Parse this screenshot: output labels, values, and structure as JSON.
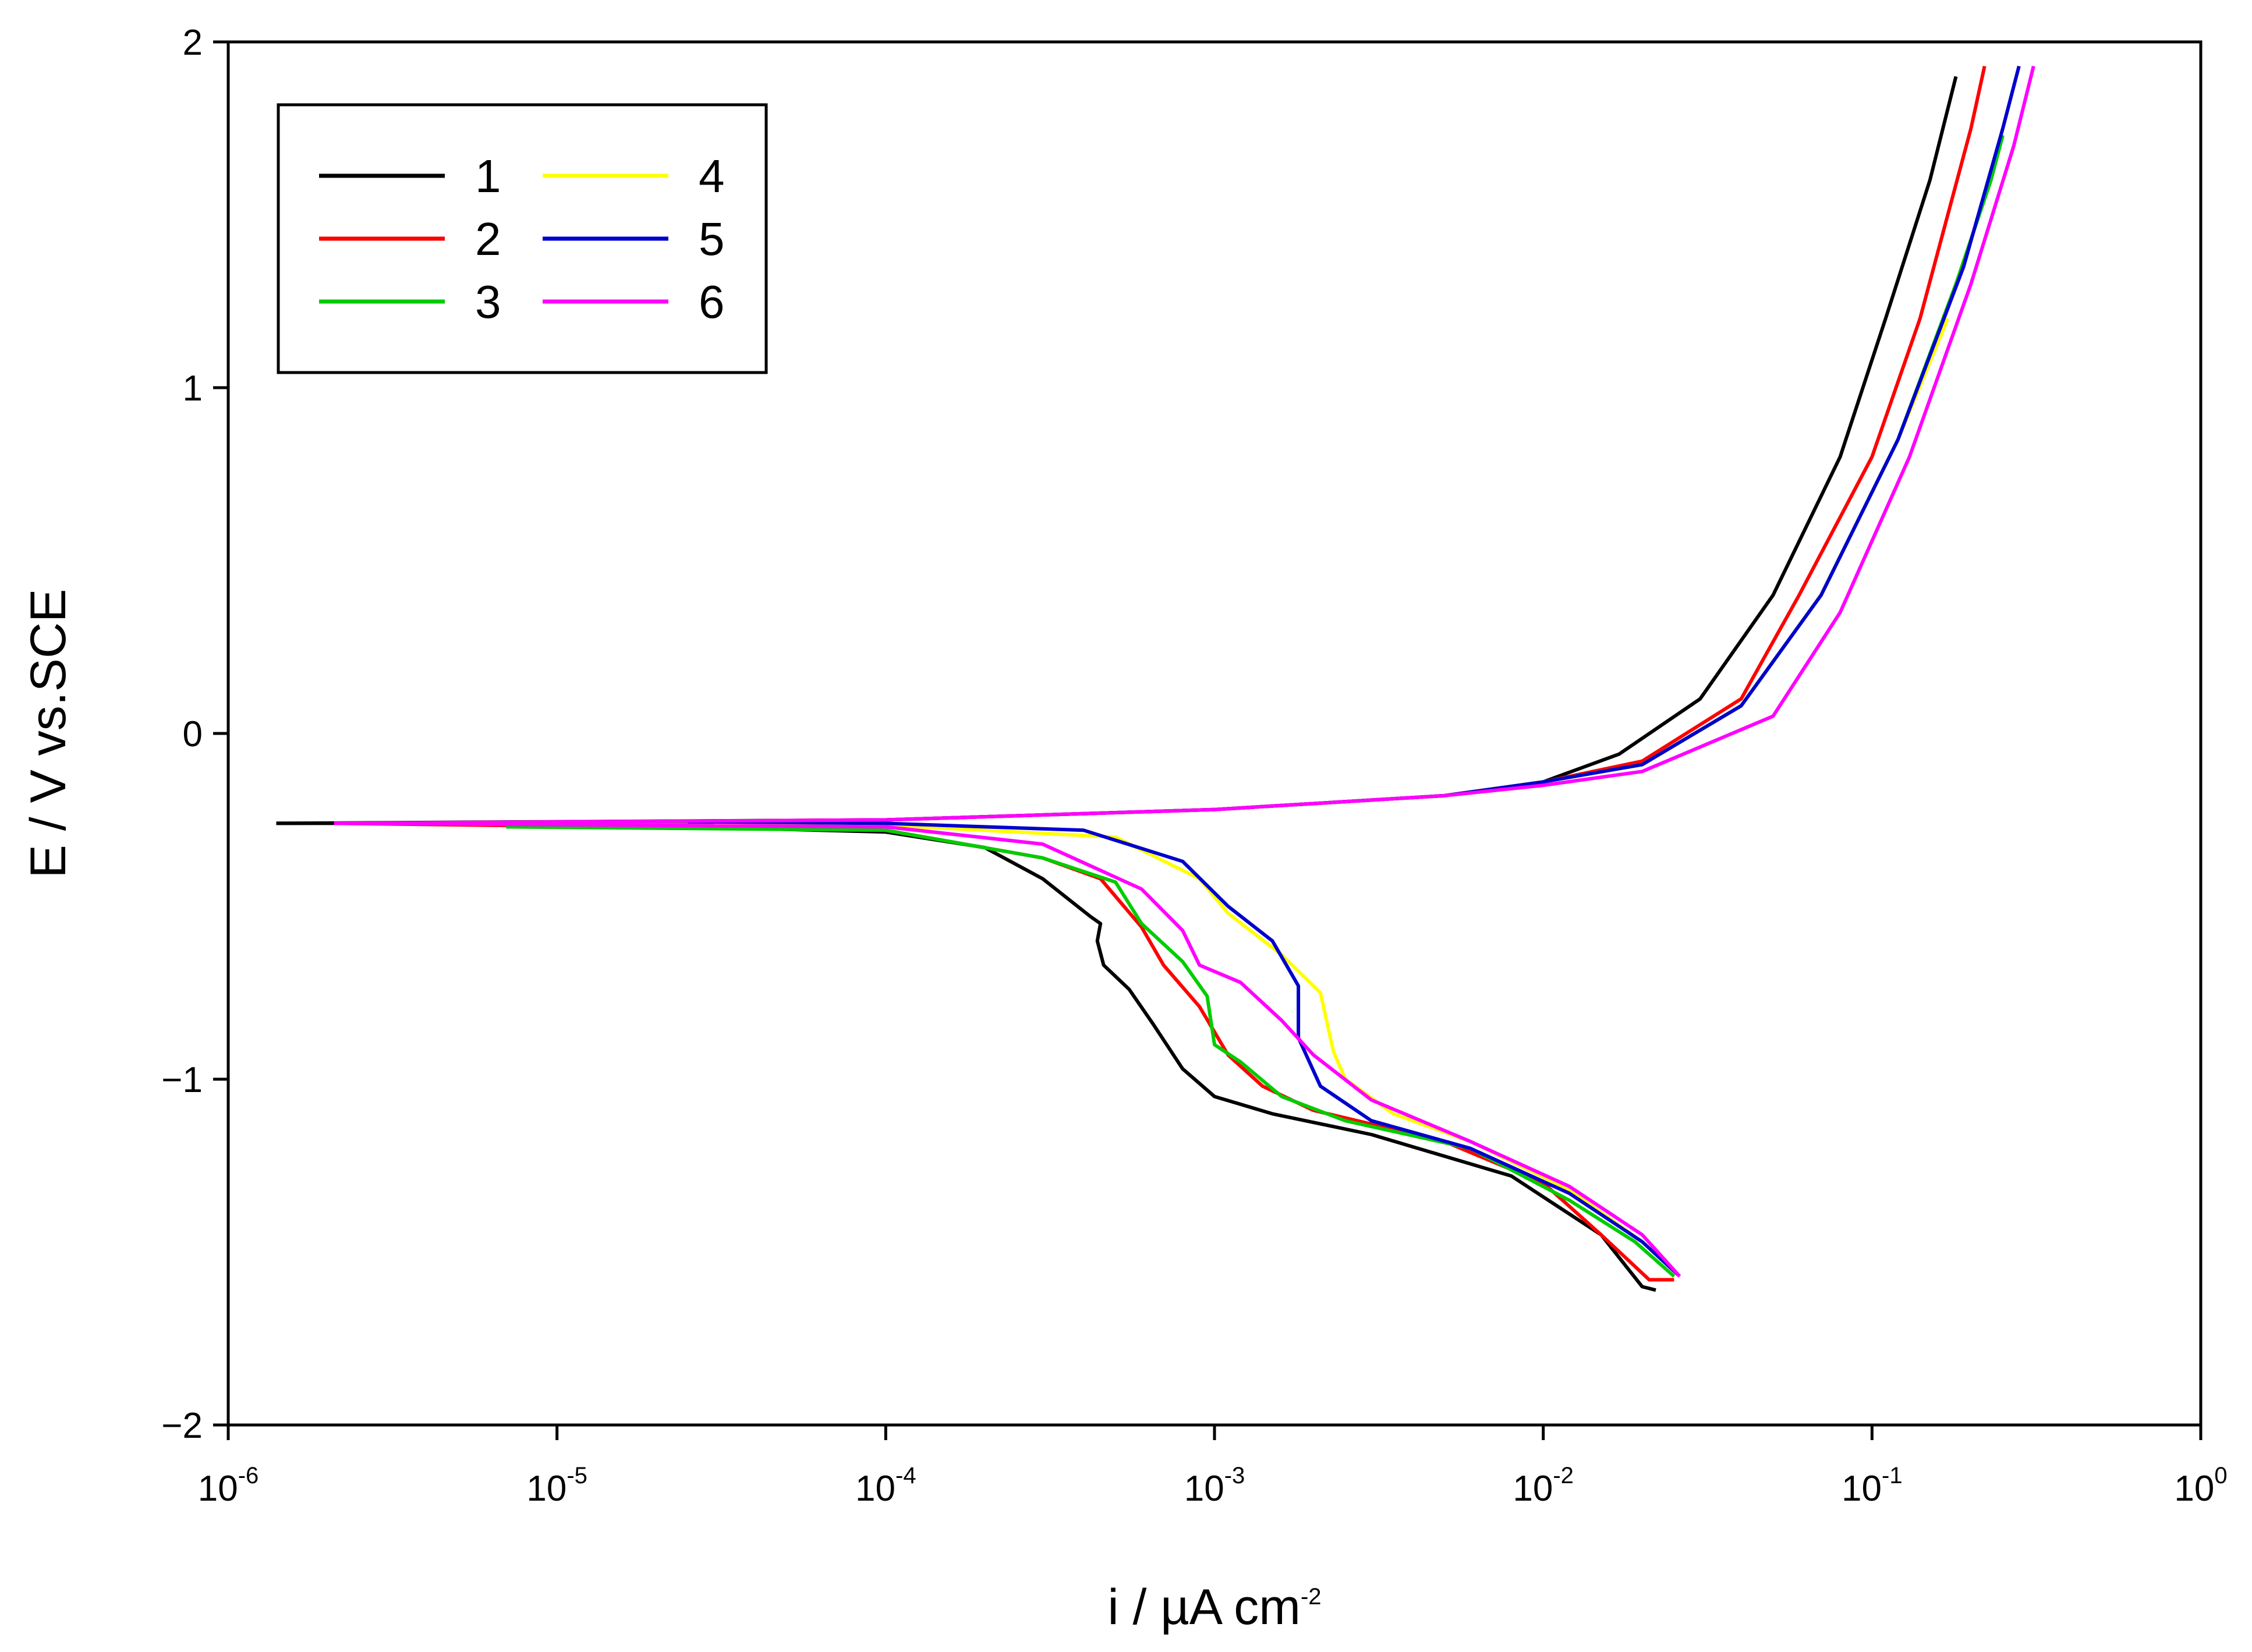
{
  "chart_data": {
    "type": "line",
    "title": "",
    "xlabel": "i / µA cm",
    "xlabel_sup": "-2",
    "ylabel": "E / V vs.SCE",
    "x_scale": "log",
    "xlim": [
      1e-06,
      1
    ],
    "ylim": [
      -2,
      2
    ],
    "x_ticks": [
      {
        "value": 1e-06,
        "base": "10",
        "exp": "-6"
      },
      {
        "value": 1e-05,
        "base": "10",
        "exp": "-5"
      },
      {
        "value": 0.0001,
        "base": "10",
        "exp": "-4"
      },
      {
        "value": 0.001,
        "base": "10",
        "exp": "-3"
      },
      {
        "value": 0.01,
        "base": "10",
        "exp": "-2"
      },
      {
        "value": 0.1,
        "base": "10",
        "exp": "-1"
      },
      {
        "value": 1,
        "base": "10",
        "exp": "0"
      }
    ],
    "y_ticks": [
      {
        "value": 2,
        "label": "2"
      },
      {
        "value": 1,
        "label": "1"
      },
      {
        "value": 0,
        "label": "0"
      },
      {
        "value": -1,
        "label": "−1"
      },
      {
        "value": -2,
        "label": "−2"
      }
    ],
    "grid": false,
    "legend_position": "top-left",
    "series": [
      {
        "name": "1",
        "color": "#000000",
        "cathodic": [
          [
            1.4e-06,
            -0.26
          ],
          [
            1e-05,
            -0.26
          ],
          [
            0.0001,
            -0.285
          ],
          [
            0.0002,
            -0.33
          ],
          [
            0.0003,
            -0.42
          ],
          [
            0.00042,
            -0.53
          ],
          [
            0.00045,
            -0.55
          ],
          [
            0.00044,
            -0.6
          ],
          [
            0.00046,
            -0.67
          ],
          [
            0.00055,
            -0.74
          ],
          [
            0.00065,
            -0.84
          ],
          [
            0.0008,
            -0.97
          ],
          [
            0.001,
            -1.05
          ],
          [
            0.0015,
            -1.1
          ],
          [
            0.003,
            -1.16
          ],
          [
            0.008,
            -1.28
          ],
          [
            0.015,
            -1.45
          ],
          [
            0.02,
            -1.6
          ],
          [
            0.022,
            -1.61
          ]
        ],
        "anodic": [
          [
            1.4e-06,
            -0.26
          ],
          [
            0.0001,
            -0.25
          ],
          [
            0.001,
            -0.22
          ],
          [
            0.005,
            -0.18
          ],
          [
            0.01,
            -0.14
          ],
          [
            0.017,
            -0.06
          ],
          [
            0.03,
            0.1
          ],
          [
            0.05,
            0.4
          ],
          [
            0.08,
            0.8
          ],
          [
            0.11,
            1.2
          ],
          [
            0.15,
            1.6
          ],
          [
            0.18,
            1.9
          ]
        ]
      },
      {
        "name": "2",
        "color": "#ff0000",
        "cathodic": [
          [
            2.1e-06,
            -0.26
          ],
          [
            0.0001,
            -0.28
          ],
          [
            0.0003,
            -0.36
          ],
          [
            0.00045,
            -0.42
          ],
          [
            0.0006,
            -0.56
          ],
          [
            0.0007,
            -0.67
          ],
          [
            0.0009,
            -0.79
          ],
          [
            0.0011,
            -0.93
          ],
          [
            0.0014,
            -1.02
          ],
          [
            0.002,
            -1.09
          ],
          [
            0.005,
            -1.18
          ],
          [
            0.01,
            -1.3
          ],
          [
            0.015,
            -1.45
          ],
          [
            0.021,
            -1.58
          ],
          [
            0.025,
            -1.58
          ]
        ],
        "anodic": [
          [
            2.1e-06,
            -0.26
          ],
          [
            0.0001,
            -0.25
          ],
          [
            0.001,
            -0.22
          ],
          [
            0.005,
            -0.18
          ],
          [
            0.01,
            -0.14
          ],
          [
            0.02,
            -0.08
          ],
          [
            0.04,
            0.1
          ],
          [
            0.06,
            0.4
          ],
          [
            0.1,
            0.8
          ],
          [
            0.14,
            1.2
          ],
          [
            0.17,
            1.5
          ],
          [
            0.2,
            1.75
          ],
          [
            0.22,
            1.93
          ]
        ]
      },
      {
        "name": "3",
        "color": "#00cc00",
        "cathodic": [
          [
            7e-06,
            -0.27
          ],
          [
            0.0001,
            -0.28
          ],
          [
            0.0003,
            -0.36
          ],
          [
            0.0005,
            -0.43
          ],
          [
            0.0006,
            -0.55
          ],
          [
            0.0008,
            -0.66
          ],
          [
            0.00095,
            -0.76
          ],
          [
            0.001,
            -0.9
          ],
          [
            0.0012,
            -0.95
          ],
          [
            0.0016,
            -1.05
          ],
          [
            0.0025,
            -1.12
          ],
          [
            0.006,
            -1.2
          ],
          [
            0.012,
            -1.35
          ],
          [
            0.019,
            -1.47
          ],
          [
            0.025,
            -1.57
          ]
        ],
        "anodic": [
          [
            7e-06,
            -0.27
          ],
          [
            0.0001,
            -0.25
          ],
          [
            0.001,
            -0.22
          ],
          [
            0.005,
            -0.18
          ],
          [
            0.01,
            -0.14
          ],
          [
            0.02,
            -0.09
          ],
          [
            0.04,
            0.08
          ],
          [
            0.07,
            0.4
          ],
          [
            0.12,
            0.85
          ],
          [
            0.18,
            1.3
          ],
          [
            0.23,
            1.6
          ],
          [
            0.25,
            1.73
          ]
        ]
      },
      {
        "name": "4",
        "color": "#ffff00",
        "cathodic": [
          [
            3e-05,
            -0.26
          ],
          [
            0.0001,
            -0.265
          ],
          [
            0.0005,
            -0.3
          ],
          [
            0.0009,
            -0.42
          ],
          [
            0.0011,
            -0.52
          ],
          [
            0.0016,
            -0.64
          ],
          [
            0.0021,
            -0.75
          ],
          [
            0.0023,
            -0.92
          ],
          [
            0.0025,
            -1.0
          ],
          [
            0.0035,
            -1.1
          ],
          [
            0.006,
            -1.18
          ],
          [
            0.012,
            -1.32
          ],
          [
            0.02,
            -1.47
          ],
          [
            0.026,
            -1.57
          ]
        ],
        "anodic": [
          [
            3e-05,
            -0.26
          ],
          [
            0.0001,
            -0.25
          ],
          [
            0.001,
            -0.22
          ],
          [
            0.005,
            -0.18
          ],
          [
            0.01,
            -0.14
          ],
          [
            0.02,
            -0.09
          ],
          [
            0.04,
            0.08
          ],
          [
            0.07,
            0.4
          ],
          [
            0.12,
            0.85
          ],
          [
            0.17,
            1.2
          ]
        ]
      },
      {
        "name": "5",
        "color": "#0000cc",
        "cathodic": [
          [
            2.5e-05,
            -0.255
          ],
          [
            0.0001,
            -0.26
          ],
          [
            0.0004,
            -0.28
          ],
          [
            0.0008,
            -0.37
          ],
          [
            0.0011,
            -0.5
          ],
          [
            0.0015,
            -0.6
          ],
          [
            0.0018,
            -0.73
          ],
          [
            0.0018,
            -0.88
          ],
          [
            0.0021,
            -1.02
          ],
          [
            0.003,
            -1.12
          ],
          [
            0.006,
            -1.2
          ],
          [
            0.012,
            -1.33
          ],
          [
            0.02,
            -1.47
          ],
          [
            0.026,
            -1.57
          ]
        ],
        "anodic": [
          [
            2.5e-05,
            -0.255
          ],
          [
            0.0001,
            -0.25
          ],
          [
            0.001,
            -0.22
          ],
          [
            0.005,
            -0.18
          ],
          [
            0.01,
            -0.14
          ],
          [
            0.02,
            -0.09
          ],
          [
            0.04,
            0.08
          ],
          [
            0.07,
            0.4
          ],
          [
            0.12,
            0.85
          ],
          [
            0.19,
            1.35
          ],
          [
            0.25,
            1.75
          ],
          [
            0.28,
            1.93
          ]
        ]
      },
      {
        "name": "6",
        "color": "#ff00ff",
        "cathodic": [
          [
            2.1e-06,
            -0.26
          ],
          [
            0.0001,
            -0.27
          ],
          [
            0.0003,
            -0.32
          ],
          [
            0.0006,
            -0.45
          ],
          [
            0.0008,
            -0.57
          ],
          [
            0.0009,
            -0.67
          ],
          [
            0.0012,
            -0.72
          ],
          [
            0.0016,
            -0.83
          ],
          [
            0.002,
            -0.93
          ],
          [
            0.003,
            -1.06
          ],
          [
            0.006,
            -1.18
          ],
          [
            0.012,
            -1.31
          ],
          [
            0.02,
            -1.45
          ],
          [
            0.026,
            -1.57
          ]
        ],
        "anodic": [
          [
            2.1e-06,
            -0.26
          ],
          [
            0.0001,
            -0.25
          ],
          [
            0.001,
            -0.22
          ],
          [
            0.005,
            -0.18
          ],
          [
            0.01,
            -0.15
          ],
          [
            0.02,
            -0.11
          ],
          [
            0.05,
            0.05
          ],
          [
            0.08,
            0.35
          ],
          [
            0.13,
            0.8
          ],
          [
            0.2,
            1.3
          ],
          [
            0.27,
            1.7
          ],
          [
            0.31,
            1.93
          ]
        ]
      }
    ]
  }
}
